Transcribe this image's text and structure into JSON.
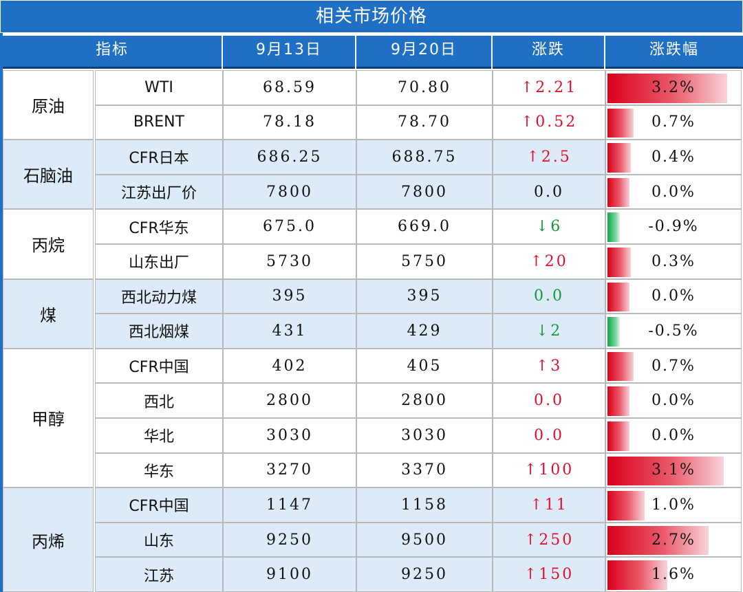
{
  "title": "相关市场价格",
  "headers": [
    "指标",
    "9月13日",
    "9月20日",
    "涨跌",
    "涨跌幅"
  ],
  "colors": {
    "header_bg": "#1f6fc5",
    "shade_bg": "#ddeaf7",
    "up": "#e0102a",
    "down": "#139a3c"
  },
  "groups": [
    {
      "name": "原油",
      "rows": [
        {
          "item": "WTI",
          "prev": "68.59",
          "curr": "70.80",
          "change": "↑2.21",
          "dir": "up",
          "pct": "3.2%",
          "pct_value": 3.2
        },
        {
          "item": "BRENT",
          "prev": "78.18",
          "curr": "78.70",
          "change": "↑0.52",
          "dir": "up",
          "pct": "0.7%",
          "pct_value": 0.7
        }
      ]
    },
    {
      "name": "石脑油",
      "rows": [
        {
          "item": "CFR日本",
          "prev": "686.25",
          "curr": "688.75",
          "change": "↑2.5",
          "dir": "up",
          "pct": "0.4%",
          "pct_value": 0.4
        },
        {
          "item": "江苏出厂价",
          "prev": "7800",
          "curr": "7800",
          "change": "0.0",
          "dir": "flat",
          "pct": "0.0%",
          "pct_value": 0.0
        }
      ]
    },
    {
      "name": "丙烷",
      "rows": [
        {
          "item": "CFR华东",
          "prev": "675.0",
          "curr": "669.0",
          "change": "↓6",
          "dir": "down",
          "pct": "-0.9%",
          "pct_value": -0.9
        },
        {
          "item": "山东出厂",
          "prev": "5730",
          "curr": "5750",
          "change": "↑20",
          "dir": "up",
          "pct": "0.3%",
          "pct_value": 0.3
        }
      ]
    },
    {
      "name": "煤",
      "rows": [
        {
          "item": "西北动力煤",
          "prev": "395",
          "curr": "395",
          "change": "0.0",
          "dir": "flat-green",
          "pct": "0.0%",
          "pct_value": 0.0
        },
        {
          "item": "西北烟煤",
          "prev": "431",
          "curr": "429",
          "change": "↓2",
          "dir": "down",
          "pct": "-0.5%",
          "pct_value": -0.5
        }
      ]
    },
    {
      "name": "甲醇",
      "rows": [
        {
          "item": "CFR中国",
          "prev": "402",
          "curr": "405",
          "change": "↑3",
          "dir": "up",
          "pct": "0.7%",
          "pct_value": 0.7
        },
        {
          "item": "西北",
          "prev": "2800",
          "curr": "2800",
          "change": "0.0",
          "dir": "flat-red",
          "pct": "0.0%",
          "pct_value": 0.0
        },
        {
          "item": "华北",
          "prev": "3030",
          "curr": "3030",
          "change": "0.0",
          "dir": "flat-red",
          "pct": "0.0%",
          "pct_value": 0.0
        },
        {
          "item": "华东",
          "prev": "3270",
          "curr": "3370",
          "change": "↑100",
          "dir": "up",
          "pct": "3.1%",
          "pct_value": 3.1
        }
      ]
    },
    {
      "name": "丙烯",
      "rows": [
        {
          "item": "CFR中国",
          "prev": "1147",
          "curr": "1158",
          "change": "↑11",
          "dir": "up",
          "pct": "1.0%",
          "pct_value": 1.0
        },
        {
          "item": "山东",
          "prev": "9250",
          "curr": "9500",
          "change": "↑250",
          "dir": "up",
          "pct": "2.7%",
          "pct_value": 2.7
        },
        {
          "item": "江苏",
          "prev": "9100",
          "curr": "9250",
          "change": "↑150",
          "dir": "up",
          "pct": "1.6%",
          "pct_value": 1.6
        }
      ]
    }
  ]
}
